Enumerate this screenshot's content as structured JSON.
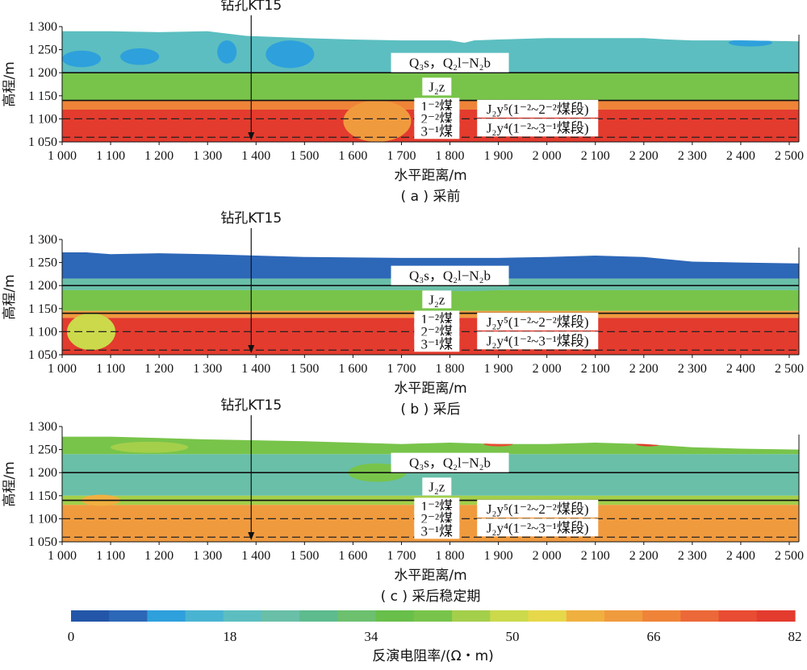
{
  "chart_data": {
    "type": "heatmap",
    "xlabel": "水平距离/m",
    "ylabel": "高程/m",
    "xlim": [
      1000,
      2520
    ],
    "ylim": [
      1050,
      1300
    ],
    "x_ticks": [
      "1 000",
      "1 100",
      "1 200",
      "1 300",
      "1 400",
      "1 500",
      "1 600",
      "1 700",
      "1 800",
      "1 900",
      "2 000",
      "2 100",
      "2 200",
      "2 300",
      "2 400",
      "2 500"
    ],
    "y_ticks": [
      "1 300",
      "1 250",
      "1 200",
      "1 150",
      "1 100",
      "1 050"
    ],
    "borehole_x": 1390,
    "borehole_label": "钻孔KT15",
    "boundary_solid": [
      1200,
      1140
    ],
    "boundary_dashed": [
      1100,
      1060
    ],
    "formation_labels": {
      "upper": "Q₃s，Q₂l−N₂b",
      "jz": "J₂z",
      "coal_1_2": "1⁻²煤",
      "coal_2_2": "2⁻²煤",
      "coal_3_1": "3⁻¹煤",
      "j2y5": "J₂y⁵(1⁻²~2⁻²煤段)",
      "j2y4": "J₂y⁴(1⁻²~3⁻¹煤段)"
    },
    "panels": [
      {
        "caption": "( a ) 采前",
        "surface": [
          [
            1000,
            1290
          ],
          [
            1100,
            1290
          ],
          [
            1200,
            1288
          ],
          [
            1300,
            1290
          ],
          [
            1380,
            1280
          ],
          [
            1500,
            1275
          ],
          [
            1600,
            1272
          ],
          [
            1700,
            1270
          ],
          [
            1800,
            1270
          ],
          [
            1830,
            1265
          ],
          [
            1850,
            1270
          ],
          [
            1900,
            1272
          ],
          [
            2000,
            1275
          ],
          [
            2100,
            1275
          ],
          [
            2200,
            1275
          ],
          [
            2250,
            1272
          ],
          [
            2300,
            1270
          ],
          [
            2400,
            1270
          ],
          [
            2520,
            1268
          ]
        ],
        "zones": [
          {
            "top": "surface",
            "bottom": 1200,
            "resistivity": 20
          },
          {
            "top": 1200,
            "bottom": 1140,
            "resistivity": 40
          },
          {
            "top": 1140,
            "bottom": 1120,
            "resistivity": 66
          },
          {
            "top": 1120,
            "bottom": 1050,
            "resistivity": 78
          }
        ],
        "anomalies": [
          {
            "x": 1040,
            "y": 1230,
            "rx": 40,
            "ry": 18,
            "resistivity": 10
          },
          {
            "x": 1160,
            "y": 1235,
            "rx": 40,
            "ry": 18,
            "resistivity": 10
          },
          {
            "x": 1340,
            "y": 1245,
            "rx": 20,
            "ry": 25,
            "resistivity": 10
          },
          {
            "x": 1470,
            "y": 1240,
            "rx": 50,
            "ry": 30,
            "resistivity": 10
          },
          {
            "x": 2420,
            "y": 1265,
            "rx": 45,
            "ry": 8,
            "resistivity": 10
          },
          {
            "x": 1650,
            "y": 1095,
            "rx": 70,
            "ry": 45,
            "resistivity": 62
          }
        ]
      },
      {
        "caption": "( b ) 采后",
        "surface": [
          [
            1000,
            1272
          ],
          [
            1050,
            1272
          ],
          [
            1100,
            1268
          ],
          [
            1200,
            1270
          ],
          [
            1300,
            1268
          ],
          [
            1400,
            1265
          ],
          [
            1500,
            1262
          ],
          [
            1700,
            1260
          ],
          [
            1900,
            1260
          ],
          [
            2000,
            1262
          ],
          [
            2100,
            1265
          ],
          [
            2200,
            1262
          ],
          [
            2300,
            1252
          ],
          [
            2400,
            1250
          ],
          [
            2520,
            1248
          ]
        ],
        "zones": [
          {
            "top": "surface",
            "bottom": 1215,
            "resistivity": 8
          },
          {
            "top": 1215,
            "bottom": 1190,
            "resistivity": 22
          },
          {
            "top": 1190,
            "bottom": 1145,
            "resistivity": 42
          },
          {
            "top": 1145,
            "bottom": 1130,
            "resistivity": 64
          },
          {
            "top": 1130,
            "bottom": 1050,
            "resistivity": 78
          }
        ],
        "anomalies": [
          {
            "x": 1060,
            "y": 1100,
            "rx": 50,
            "ry": 40,
            "resistivity": 50
          },
          {
            "x": 1830,
            "y": 1200,
            "rx": 120,
            "ry": 12,
            "resistivity": 25
          }
        ]
      },
      {
        "caption": "( c ) 采后稳定期",
        "surface": [
          [
            1000,
            1278
          ],
          [
            1100,
            1278
          ],
          [
            1200,
            1275
          ],
          [
            1300,
            1272
          ],
          [
            1400,
            1270
          ],
          [
            1500,
            1268
          ],
          [
            1600,
            1265
          ],
          [
            1700,
            1262
          ],
          [
            1800,
            1265
          ],
          [
            1900,
            1262
          ],
          [
            2000,
            1262
          ],
          [
            2100,
            1265
          ],
          [
            2200,
            1262
          ],
          [
            2300,
            1255
          ],
          [
            2400,
            1252
          ],
          [
            2520,
            1250
          ]
        ],
        "zones": [
          {
            "top": "surface",
            "bottom": 1240,
            "resistivity": 40
          },
          {
            "top": 1240,
            "bottom": 1150,
            "resistivity": 24
          },
          {
            "top": 1150,
            "bottom": 1130,
            "resistivity": 44
          },
          {
            "top": 1130,
            "bottom": 1050,
            "resistivity": 64
          }
        ],
        "anomalies": [
          {
            "x": 2210,
            "y": 1265,
            "rx": 30,
            "ry": 8,
            "resistivity": 80
          },
          {
            "x": 1900,
            "y": 1262,
            "rx": 30,
            "ry": 5,
            "resistivity": 76
          },
          {
            "x": 1180,
            "y": 1255,
            "rx": 80,
            "ry": 12,
            "resistivity": 44
          },
          {
            "x": 1650,
            "y": 1200,
            "rx": 60,
            "ry": 20,
            "resistivity": 42
          },
          {
            "x": 1080,
            "y": 1140,
            "rx": 40,
            "ry": 12,
            "resistivity": 60
          }
        ]
      }
    ],
    "colorbar": {
      "title": "反演电阻率/(Ω・m)",
      "ticks": [
        "0",
        "18",
        "34",
        "50",
        "66",
        "82"
      ],
      "min": 0,
      "max": 82,
      "colors": [
        "#2356a8",
        "#2d67b8",
        "#2ea0dc",
        "#49b4d2",
        "#5cbec0",
        "#69bfa8",
        "#5dbb8e",
        "#6cc06e",
        "#68bf4a",
        "#78c44a",
        "#a4cf4a",
        "#cbd94a",
        "#e7d84a",
        "#f0b040",
        "#f09a3e",
        "#ef8438",
        "#ec6838",
        "#e84c32",
        "#e33b2e"
      ]
    }
  }
}
